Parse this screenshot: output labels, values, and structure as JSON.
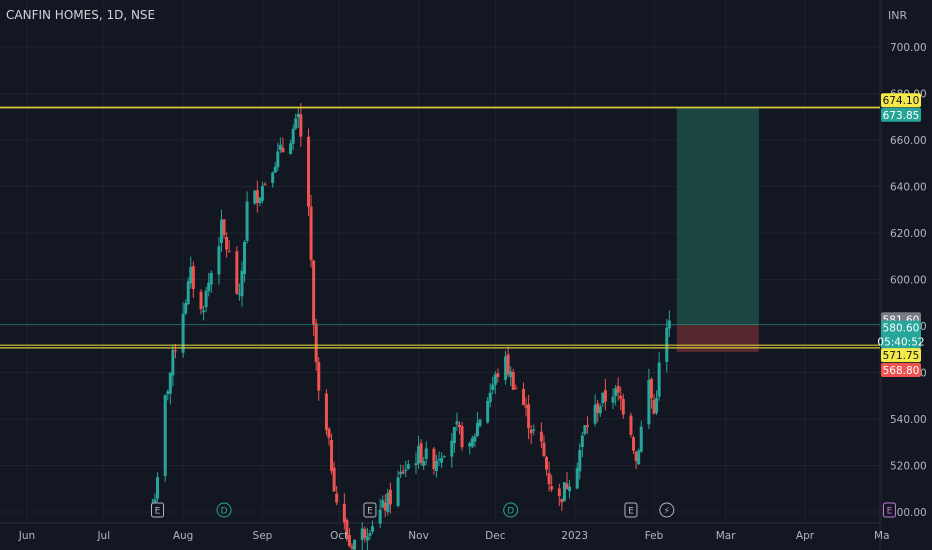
{
  "header": {
    "symbol": "CANFIN HOMES, 1D, NSE",
    "currency": "INR"
  },
  "colors": {
    "background": "#131722",
    "grid": "#1e222d",
    "text": "#b2b5be",
    "up": "#26a69a",
    "down": "#ef5350",
    "level": "#d6c83a",
    "target_zone": "#1e4d48",
    "stop_zone": "#5c2a30"
  },
  "chart_data": {
    "type": "candlestick",
    "y_ticks": [
      "500.00",
      "520.00",
      "540.00",
      "560.00",
      "580.00",
      "600.00",
      "620.00",
      "640.00",
      "660.00",
      "680.00",
      "700.00"
    ],
    "ylim": [
      498,
      708
    ],
    "x_labels": [
      {
        "label": "Jun",
        "date": "2022-06-01"
      },
      {
        "label": "Jul",
        "date": "2022-07-01"
      },
      {
        "label": "Aug",
        "date": "2022-08-01"
      },
      {
        "label": "Sep",
        "date": "2022-09-01"
      },
      {
        "label": "Oct",
        "date": "2022-10-01"
      },
      {
        "label": "Nov",
        "date": "2022-11-01"
      },
      {
        "label": "Dec",
        "date": "2022-12-01"
      },
      {
        "label": "2023",
        "date": "2023-01-01"
      },
      {
        "label": "Feb",
        "date": "2023-02-01"
      },
      {
        "label": "Mar",
        "date": "2023-03-01"
      },
      {
        "label": "Apr",
        "date": "2023-04-01"
      },
      {
        "label": "Ma",
        "date": "2023-05-01"
      }
    ],
    "close_series": [
      {
        "date": "2022-07-20",
        "close": 503
      },
      {
        "date": "2022-07-22",
        "close": 512
      },
      {
        "date": "2022-07-25",
        "close": 548
      },
      {
        "date": "2022-07-27",
        "close": 560
      },
      {
        "date": "2022-07-29",
        "close": 572
      },
      {
        "date": "2022-08-02",
        "close": 592
      },
      {
        "date": "2022-08-04",
        "close": 602
      },
      {
        "date": "2022-08-08",
        "close": 586
      },
      {
        "date": "2022-08-10",
        "close": 594
      },
      {
        "date": "2022-08-16",
        "close": 622
      },
      {
        "date": "2022-08-19",
        "close": 610
      },
      {
        "date": "2022-08-23",
        "close": 590
      },
      {
        "date": "2022-08-26",
        "close": 632
      },
      {
        "date": "2022-08-31",
        "close": 638
      },
      {
        "date": "2022-09-05",
        "close": 650
      },
      {
        "date": "2022-09-09",
        "close": 656
      },
      {
        "date": "2022-09-13",
        "close": 664
      },
      {
        "date": "2022-09-15",
        "close": 668
      },
      {
        "date": "2022-09-16",
        "close": 660
      },
      {
        "date": "2022-09-19",
        "close": 632
      },
      {
        "date": "2022-09-21",
        "close": 578
      },
      {
        "date": "2022-09-23",
        "close": 550
      },
      {
        "date": "2022-09-27",
        "close": 528
      },
      {
        "date": "2022-09-30",
        "close": 505
      },
      {
        "date": "2022-10-05",
        "close": 486
      },
      {
        "date": "2022-10-11",
        "close": 492
      },
      {
        "date": "2022-10-17",
        "close": 500
      },
      {
        "date": "2022-10-21",
        "close": 506
      },
      {
        "date": "2022-10-26",
        "close": 518
      },
      {
        "date": "2022-11-01",
        "close": 525
      },
      {
        "date": "2022-11-07",
        "close": 522
      },
      {
        "date": "2022-11-11",
        "close": 528
      },
      {
        "date": "2022-11-16",
        "close": 535
      },
      {
        "date": "2022-11-21",
        "close": 526
      },
      {
        "date": "2022-11-24",
        "close": 538
      },
      {
        "date": "2022-11-29",
        "close": 552
      },
      {
        "date": "2022-12-02",
        "close": 560
      },
      {
        "date": "2022-12-05",
        "close": 564
      },
      {
        "date": "2022-12-08",
        "close": 556
      },
      {
        "date": "2022-12-12",
        "close": 546
      },
      {
        "date": "2022-12-15",
        "close": 536
      },
      {
        "date": "2022-12-19",
        "close": 528
      },
      {
        "date": "2022-12-22",
        "close": 514
      },
      {
        "date": "2022-12-26",
        "close": 505
      },
      {
        "date": "2023-01-02",
        "close": 522
      },
      {
        "date": "2023-01-05",
        "close": 536
      },
      {
        "date": "2023-01-09",
        "close": 544
      },
      {
        "date": "2023-01-12",
        "close": 548
      },
      {
        "date": "2023-01-16",
        "close": 552
      },
      {
        "date": "2023-01-19",
        "close": 548
      },
      {
        "date": "2023-01-23",
        "close": 536
      },
      {
        "date": "2023-01-25",
        "close": 522
      },
      {
        "date": "2023-01-27",
        "close": 536
      },
      {
        "date": "2023-01-30",
        "close": 556
      },
      {
        "date": "2023-02-01",
        "close": 542
      },
      {
        "date": "2023-02-03",
        "close": 562
      },
      {
        "date": "2023-02-06",
        "close": 578
      },
      {
        "date": "2023-02-07",
        "close": 580.6
      }
    ],
    "levels": [
      {
        "name": "upper-resistance-1",
        "price": 674.1
      },
      {
        "name": "upper-resistance-2",
        "price": 673.85
      },
      {
        "name": "support-1",
        "price": 571.75
      },
      {
        "name": "support-2",
        "price": 570.6
      }
    ],
    "position": {
      "start_date": "2023-02-06",
      "end_date": "2023-03-14",
      "target": 673.85,
      "entry": 580.6,
      "stop": 568.8
    },
    "price_tags": [
      {
        "label": "674.10",
        "price": 674.1,
        "bg": "#f5e94a",
        "fg": "#131722",
        "offset": -7
      },
      {
        "label": "673.85",
        "price": 673.85,
        "bg": "#26a69a",
        "fg": "#ffffff",
        "offset": 7
      },
      {
        "label": "581.60",
        "price": 581.6,
        "bg": "#787b86",
        "fg": "#ffffff",
        "offset": -3
      },
      {
        "label": "580.60",
        "price": 580.6,
        "bg": "#26a69a",
        "fg": "#ffffff",
        "offset": 10,
        "countdown": "05:40:52"
      },
      {
        "label": "571.75",
        "price": 571.75,
        "bg": "#f5e94a",
        "fg": "#131722",
        "offset": 10
      },
      {
        "label": "568.80",
        "price": 568.8,
        "bg": "#ef5350",
        "fg": "#ffffff",
        "offset": 18
      }
    ],
    "event_markers": [
      {
        "label": "E",
        "date": "2022-07-22",
        "color": "#b2b5be"
      },
      {
        "label": "D",
        "date": "2022-08-17",
        "color": "#26a69a"
      },
      {
        "label": "E",
        "date": "2022-10-13",
        "color": "#b2b5be"
      },
      {
        "label": "D",
        "date": "2022-12-07",
        "color": "#26a69a"
      },
      {
        "label": "E",
        "date": "2023-01-23",
        "color": "#b2b5be"
      },
      {
        "label": "⚡",
        "date": "2023-02-06",
        "color": "#b2b5be"
      },
      {
        "label": "E",
        "date": "2023-05-04",
        "color": "#c678dd"
      }
    ]
  }
}
